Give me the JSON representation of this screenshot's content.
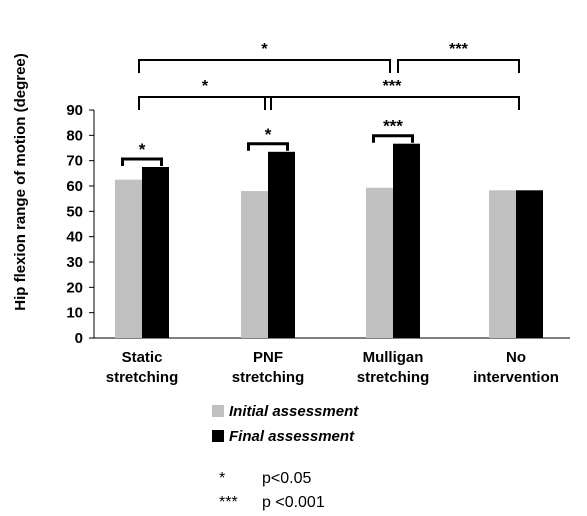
{
  "chart_data": {
    "type": "bar",
    "ylabel": "Hip flexion range of motion (degree)",
    "ylim": [
      0,
      90
    ],
    "yticks": [
      0,
      10,
      20,
      30,
      40,
      50,
      60,
      70,
      80,
      90
    ],
    "categories": [
      [
        "Static",
        "stretching"
      ],
      [
        "PNF",
        "stretching"
      ],
      [
        "Mulligan",
        "stretching"
      ],
      [
        "No",
        "intervention"
      ]
    ],
    "series": [
      {
        "name": "Initial assessment",
        "color": "#c0c0c0",
        "values": [
          62.5,
          58,
          59.3,
          58.3
        ]
      },
      {
        "name": "Final assessment",
        "color": "#000000",
        "values": [
          67.5,
          73.5,
          76.7,
          58.3
        ]
      }
    ],
    "within_group_significance": [
      {
        "category": 0,
        "label": "*"
      },
      {
        "category": 1,
        "label": "*"
      },
      {
        "category": 2,
        "label": "***"
      }
    ],
    "between_group_significance": [
      {
        "from": 0,
        "to": 2,
        "label": "*",
        "level": "top"
      },
      {
        "from": 2,
        "to": 3,
        "label": "***",
        "level": "top"
      },
      {
        "from": 0,
        "to": 1,
        "label": "*",
        "level": "lower"
      },
      {
        "from": 1,
        "to": 3,
        "label": "***",
        "level": "lower"
      }
    ],
    "significance_legend": [
      {
        "symbol": "*",
        "text": "p<0.05"
      },
      {
        "symbol": "***",
        "text": "p <0.001"
      }
    ],
    "legend_position": "bottom"
  }
}
